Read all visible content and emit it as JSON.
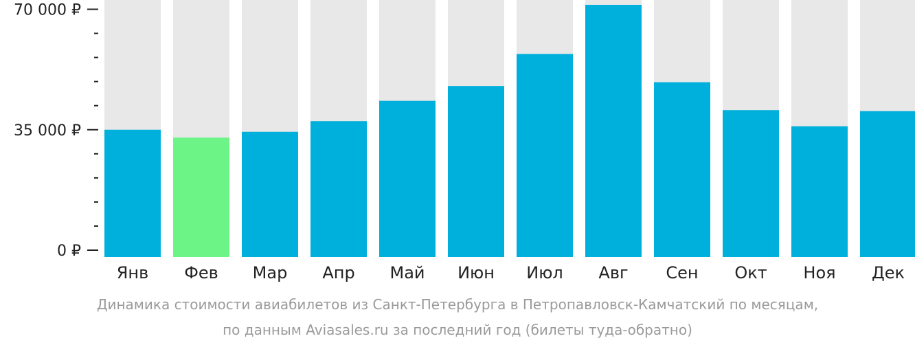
{
  "chart_data": {
    "type": "bar",
    "categories": [
      "Янв",
      "Фев",
      "Мар",
      "Апр",
      "Май",
      "Июн",
      "Июл",
      "Авг",
      "Сен",
      "Окт",
      "Ноя",
      "Дек"
    ],
    "values": [
      35000,
      32700,
      34400,
      37500,
      43400,
      47700,
      57000,
      71300,
      48800,
      40700,
      36000,
      40400
    ],
    "highlight_index": 1,
    "ylim": [
      0,
      71300
    ],
    "y_ticks": [
      {
        "value": 0,
        "label": "0 ₽"
      },
      {
        "value": 35000,
        "label": "35 000 ₽"
      },
      {
        "value": 70000,
        "label": "70 000 ₽"
      }
    ],
    "y_minor_ticks": [
      7000,
      14000,
      21000,
      28000,
      42000,
      49000,
      56000,
      63000
    ],
    "grid": false,
    "legend": "none",
    "colors": {
      "bar": "#00b0dc",
      "highlight": "#6cf487",
      "background_bar": "#e8e8e8",
      "axis": "#222222"
    }
  },
  "caption": {
    "line1": "Динамика стоимости авиабилетов из Санкт-Петербурга в Петропавловск-Камчатский по месяцам,",
    "line2": "по данным Aviasales.ru за последний год (билеты туда-обратно)"
  }
}
